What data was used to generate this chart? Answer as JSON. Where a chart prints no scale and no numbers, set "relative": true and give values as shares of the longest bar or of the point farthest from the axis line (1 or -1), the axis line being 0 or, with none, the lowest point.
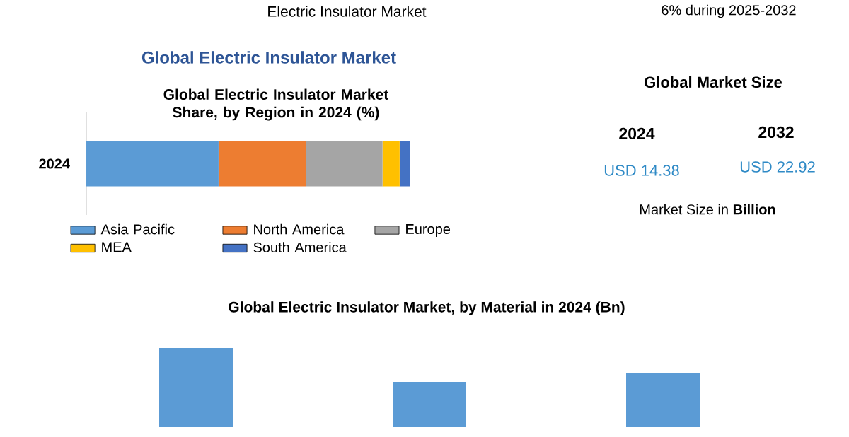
{
  "chart_data": [
    {
      "type": "bar",
      "title": "Global Electric Insulator Market",
      "subtitle": "Global Electric Insulator Market Share, by Region in 2024 (%)",
      "categories": [
        "2024"
      ],
      "stacked": true,
      "orientation": "horizontal",
      "relative": true,
      "legend": "bottom",
      "series": [
        {
          "name": "Asia Pacific",
          "color": "#5b9bd5",
          "values": [
            0.409
          ]
        },
        {
          "name": "North America",
          "color": "#ed7d31",
          "values": [
            0.271
          ]
        },
        {
          "name": "Europe",
          "color": "#a5a5a5",
          "values": [
            0.236
          ]
        },
        {
          "name": "MEA",
          "color": "#ffc000",
          "values": [
            0.053
          ]
        },
        {
          "name": "South America",
          "color": "#4472c4",
          "values": [
            0.031
          ]
        }
      ]
    },
    {
      "type": "other",
      "title": "Global Market Size",
      "annotations": [
        "Electric Insulator Market",
        "6% during 2025-2032",
        "2024",
        "USD 14.38",
        "2032",
        "USD 22.92",
        "Market Size in **Billion**"
      ]
    },
    {
      "type": "bar",
      "title": "Global Electric Insulator Market, by Material in 2024 (Bn)",
      "categories": [
        null,
        null,
        null
      ],
      "values": [
        1,
        0.571,
        0.688
      ],
      "color": "#5b9bd5",
      "relative": true
    }
  ]
}
